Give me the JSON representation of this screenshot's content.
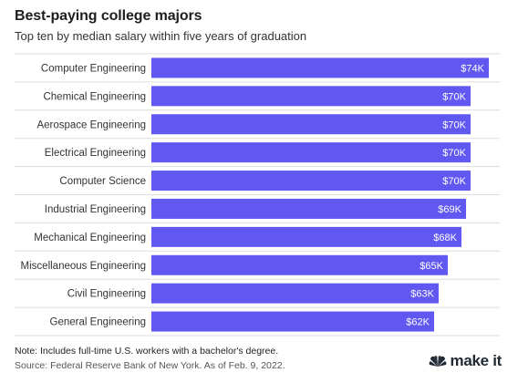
{
  "header": {
    "title": "Best-paying college majors",
    "subtitle": "Top ten by median salary within five years of graduation"
  },
  "footer": {
    "note": "Note: Includes full-time U.S. workers with a bachelor's degree.",
    "source": "Source: Federal Reserve Bank of New York. As of Feb. 9, 2022.",
    "logo_text": "make it",
    "logo_icon": "nbc-peacock-icon"
  },
  "colors": {
    "bar": "#6158F2",
    "bar_label": "#ffffff",
    "grid": "#dddddd",
    "category_label": "#333333"
  },
  "chart_data": {
    "type": "bar",
    "orientation": "horizontal",
    "categories": [
      "Computer Engineering",
      "Chemical Engineering",
      "Aerospace Engineering",
      "Electrical Engineering",
      "Computer Science",
      "Industrial Engineering",
      "Mechanical Engineering",
      "Miscellaneous Engineering",
      "Civil Engineering",
      "General Engineering"
    ],
    "values": [
      74,
      70,
      70,
      70,
      70,
      69,
      68,
      65,
      63,
      62
    ],
    "value_labels": [
      "$74K",
      "$70K",
      "$70K",
      "$70K",
      "$70K",
      "$69K",
      "$68K",
      "$65K",
      "$63K",
      "$62K"
    ],
    "unit": "thousand USD",
    "xlim": [
      0,
      74
    ],
    "grid": "horizontal separators between rows",
    "legend": "none"
  }
}
